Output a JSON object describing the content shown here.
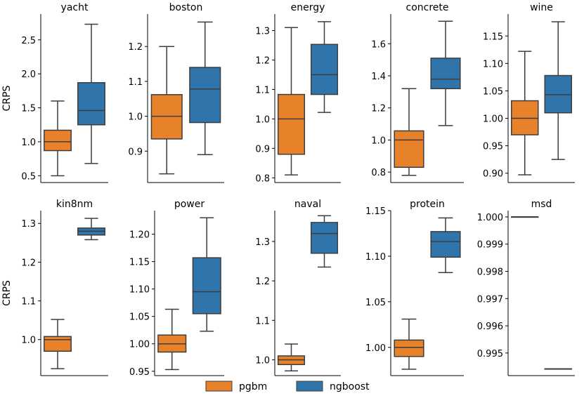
{
  "chart_data": {
    "type": "boxplot",
    "ylabel": "CRPS",
    "colors": {
      "pgbm": "#e8822a",
      "ngboost": "#2f75ac",
      "line": "#3d3d3d"
    },
    "legend": {
      "position": "bottom-center",
      "entries": [
        {
          "name": "pgbm",
          "color": "#e8822a"
        },
        {
          "name": "ngboost",
          "color": "#2f75ac"
        }
      ]
    },
    "panels": [
      {
        "title": "yacht",
        "ylim": [
          0.4,
          2.88
        ],
        "ticks": [
          0.5,
          1.0,
          1.5,
          2.0,
          2.5
        ],
        "tick_labels": [
          "0.5",
          "1.0",
          "1.5",
          "2.0",
          "2.5"
        ],
        "boxes": [
          {
            "series": "pgbm",
            "whisker_low": 0.5,
            "q1": 0.87,
            "median": 1.0,
            "q3": 1.17,
            "whisker_high": 1.6
          },
          {
            "series": "ngboost",
            "whisker_low": 0.68,
            "q1": 1.25,
            "median": 1.46,
            "q3": 1.87,
            "whisker_high": 2.73
          }
        ]
      },
      {
        "title": "boston",
        "ylim": [
          0.81,
          1.293
        ],
        "ticks": [
          0.9,
          1.0,
          1.1,
          1.2
        ],
        "tick_labels": [
          "0.9",
          "1.0",
          "1.1",
          "1.2"
        ],
        "boxes": [
          {
            "series": "pgbm",
            "whisker_low": 0.835,
            "q1": 0.935,
            "median": 1.0,
            "q3": 1.062,
            "whisker_high": 1.2
          },
          {
            "series": "ngboost",
            "whisker_low": 0.89,
            "q1": 0.982,
            "median": 1.078,
            "q3": 1.14,
            "whisker_high": 1.27
          }
        ]
      },
      {
        "title": "energy",
        "ylim": [
          0.784,
          1.356
        ],
        "ticks": [
          0.8,
          0.9,
          1.0,
          1.1,
          1.2,
          1.3
        ],
        "tick_labels": [
          "0.8",
          "0.9",
          "1.0",
          "1.1",
          "1.2",
          "1.3"
        ],
        "boxes": [
          {
            "series": "pgbm",
            "whisker_low": 0.81,
            "q1": 0.88,
            "median": 1.0,
            "q3": 1.083,
            "whisker_high": 1.31
          },
          {
            "series": "ngboost",
            "whisker_low": 1.022,
            "q1": 1.083,
            "median": 1.15,
            "q3": 1.253,
            "whisker_high": 1.33
          }
        ]
      },
      {
        "title": "concrete",
        "ylim": [
          0.735,
          1.785
        ],
        "ticks": [
          0.8,
          1.0,
          1.2,
          1.4,
          1.6
        ],
        "tick_labels": [
          "0.8",
          "1.0",
          "1.2",
          "1.4",
          "1.6"
        ],
        "boxes": [
          {
            "series": "pgbm",
            "whisker_low": 0.78,
            "q1": 0.83,
            "median": 1.0,
            "q3": 1.057,
            "whisker_high": 1.32
          },
          {
            "series": "ngboost",
            "whisker_low": 1.09,
            "q1": 1.32,
            "median": 1.38,
            "q3": 1.51,
            "whisker_high": 1.74
          }
        ]
      },
      {
        "title": "wine",
        "ylim": [
          0.883,
          1.19
        ],
        "ticks": [
          0.9,
          0.95,
          1.0,
          1.05,
          1.1,
          1.15
        ],
        "tick_labels": [
          "0.90",
          "0.95",
          "1.00",
          "1.05",
          "1.10",
          "1.15"
        ],
        "boxes": [
          {
            "series": "pgbm",
            "whisker_low": 0.897,
            "q1": 0.97,
            "median": 1.0,
            "q3": 1.032,
            "whisker_high": 1.122
          },
          {
            "series": "ngboost",
            "whisker_low": 0.925,
            "q1": 1.01,
            "median": 1.043,
            "q3": 1.078,
            "whisker_high": 1.176
          }
        ]
      },
      {
        "title": "kin8nm",
        "ylim": [
          0.907,
          1.333
        ],
        "ticks": [
          1.0,
          1.1,
          1.2,
          1.3
        ],
        "tick_labels": [
          "1.0",
          "1.1",
          "1.2",
          "1.3"
        ],
        "boxes": [
          {
            "series": "pgbm",
            "whisker_low": 0.925,
            "q1": 0.97,
            "median": 1.0,
            "q3": 1.008,
            "whisker_high": 1.052
          },
          {
            "series": "ngboost",
            "whisker_low": 1.258,
            "q1": 1.27,
            "median": 1.28,
            "q3": 1.288,
            "whisker_high": 1.313
          }
        ]
      },
      {
        "title": "power",
        "ylim": [
          0.942,
          1.243
        ],
        "ticks": [
          0.95,
          1.0,
          1.05,
          1.1,
          1.15,
          1.2
        ],
        "tick_labels": [
          "0.95",
          "1.00",
          "1.05",
          "1.10",
          "1.15",
          "1.20"
        ],
        "boxes": [
          {
            "series": "pgbm",
            "whisker_low": 0.953,
            "q1": 0.985,
            "median": 1.0,
            "q3": 1.016,
            "whisker_high": 1.063
          },
          {
            "series": "ngboost",
            "whisker_low": 1.023,
            "q1": 1.055,
            "median": 1.095,
            "q3": 1.157,
            "whisker_high": 1.23
          }
        ]
      },
      {
        "title": "naval",
        "ylim": [
          0.96,
          1.378
        ],
        "ticks": [
          1.0,
          1.1,
          1.2,
          1.3
        ],
        "tick_labels": [
          "1.0",
          "1.1",
          "1.2",
          "1.3"
        ],
        "boxes": [
          {
            "series": "pgbm",
            "whisker_low": 0.972,
            "q1": 0.988,
            "median": 1.0,
            "q3": 1.01,
            "whisker_high": 1.04
          },
          {
            "series": "ngboost",
            "whisker_low": 1.235,
            "q1": 1.27,
            "median": 1.32,
            "q3": 1.348,
            "whisker_high": 1.365
          }
        ]
      },
      {
        "title": "protein",
        "ylim": [
          0.969,
          1.15
        ],
        "ticks": [
          1.0,
          1.05,
          1.1,
          1.15
        ],
        "tick_labels": [
          "1.00",
          "1.05",
          "1.10",
          "1.15"
        ],
        "boxes": [
          {
            "series": "pgbm",
            "whisker_low": 0.976,
            "q1": 0.99,
            "median": 1.0,
            "q3": 1.008,
            "whisker_high": 1.031
          },
          {
            "series": "ngboost",
            "whisker_low": 1.082,
            "q1": 1.099,
            "median": 1.116,
            "q3": 1.127,
            "whisker_high": 1.142
          }
        ]
      },
      {
        "title": "msd",
        "ylim": [
          0.99417,
          1.00023
        ],
        "ticks": [
          0.995,
          0.996,
          0.997,
          0.998,
          0.999,
          1.0
        ],
        "tick_labels": [
          "0.995",
          "0.996",
          "0.997",
          "0.998",
          "0.999",
          "1.000"
        ],
        "boxes": [
          {
            "series": "pgbm",
            "whisker_low": 1.0,
            "q1": 1.0,
            "median": 1.0,
            "q3": 1.0,
            "whisker_high": 1.0
          },
          {
            "series": "ngboost",
            "whisker_low": 0.99442,
            "q1": 0.99442,
            "median": 0.99442,
            "q3": 0.99442,
            "whisker_high": 0.99442
          }
        ]
      }
    ]
  }
}
